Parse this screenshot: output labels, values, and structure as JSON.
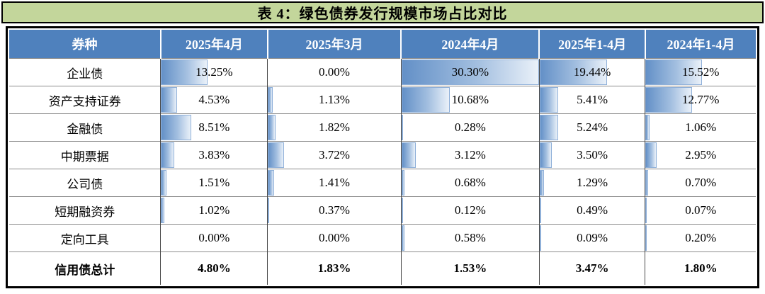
{
  "chart_data": {
    "type": "table",
    "title": "表 4：绿色债券发行规模市场占比对比",
    "columns": [
      "券种",
      "2025年4月",
      "2025年3月",
      "2024年4月",
      "2025年1-4月",
      "2024年1-4月"
    ],
    "rows": [
      {
        "label": "企业债",
        "values": [
          "13.25%",
          "0.00%",
          "30.30%",
          "19.44%",
          "15.52%"
        ],
        "total": false
      },
      {
        "label": "资产支持证券",
        "values": [
          "4.53%",
          "1.13%",
          "10.68%",
          "5.41%",
          "12.77%"
        ],
        "total": false
      },
      {
        "label": "金融债",
        "values": [
          "8.51%",
          "1.82%",
          "0.28%",
          "5.24%",
          "1.06%"
        ],
        "total": false
      },
      {
        "label": "中期票据",
        "values": [
          "3.83%",
          "3.72%",
          "3.12%",
          "3.50%",
          "2.95%"
        ],
        "total": false
      },
      {
        "label": "公司债",
        "values": [
          "1.51%",
          "1.41%",
          "0.68%",
          "1.29%",
          "0.70%"
        ],
        "total": false
      },
      {
        "label": "短期融资券",
        "values": [
          "1.02%",
          "0.37%",
          "0.12%",
          "0.49%",
          "0.07%"
        ],
        "total": false
      },
      {
        "label": "定向工具",
        "values": [
          "0.00%",
          "0.00%",
          "0.58%",
          "0.09%",
          "0.20%"
        ],
        "total": false
      },
      {
        "label": "信用债总计",
        "values": [
          "4.80%",
          "1.83%",
          "1.53%",
          "3.47%",
          "1.80%"
        ],
        "total": true
      }
    ],
    "bar_scale_max": 30.3,
    "bars_on_total_row": false,
    "layout": {
      "grid": true,
      "bars_anchor": "left"
    }
  },
  "colors": {
    "title_bg": "#c3d69b",
    "header_bg": "#4f81bd",
    "header_text": "#ffffff",
    "bar_gradient_start": "#6390c7",
    "bar_gradient_end": "#eaf1f9",
    "bar_border": "#8fb0d9",
    "outer_border": "#000000"
  }
}
